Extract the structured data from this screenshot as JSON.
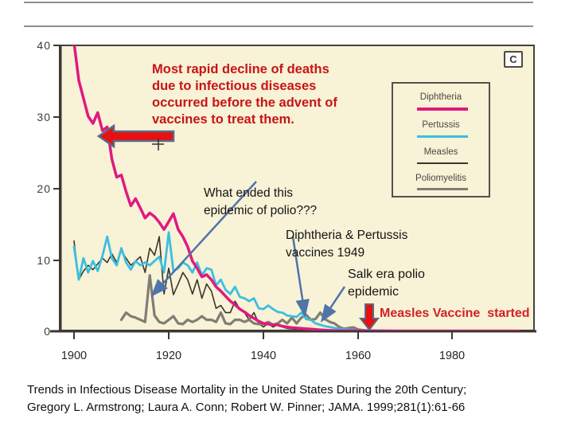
{
  "slide": {
    "panel_label": "C",
    "claim_text": "Most rapid decline of deaths\ndue to infectious diseases\noccurred before the advent of\nvaccines to treat them.",
    "question_text": "What ended this\nepidemic of polio???",
    "dp_vaccines_text": "Diphtheria & Pertussis\nvaccines 1949",
    "salk_text": "Salk era polio\nepidemic",
    "measles_vaccine_text": "Measles Vaccine  started",
    "citation_text": "Trends in Infectious Disease Mortality in the United States During the 20th Century;\nGregory L. Armstrong; Laura A. Conn; Robert W. Pinner; JAMA. 1999;281(1):61-66",
    "colors": {
      "claim_red": "#c81414",
      "measles_note_red": "#d32222",
      "arrow_fill_red": "#e81010",
      "arrow_outline_slate": "#5a6a88",
      "pointer_blue": "#4f74a8",
      "plot_background": "#f8f2d7",
      "plot_border": "#45423c"
    }
  },
  "axis": {
    "y_ticks": [
      "40",
      "30",
      "20",
      "10",
      "0"
    ],
    "x_ticks": [
      "1900",
      "1920",
      "1940",
      "1960",
      "1980"
    ]
  },
  "chart_data": {
    "type": "line",
    "xlabel": "",
    "ylabel": "",
    "xlim": [
      1897,
      1997
    ],
    "ylim": [
      0,
      40
    ],
    "x_tick_values": [
      1900,
      1920,
      1940,
      1960,
      1980
    ],
    "y_tick_values": [
      0,
      10,
      20,
      30,
      40
    ],
    "grid": false,
    "legend_position": "upper right",
    "legend_labels": [
      "Diphtheria",
      "Pertussis",
      "Measles",
      "Poliomyelitis"
    ],
    "series": [
      {
        "name": "Diphtheria",
        "color": "#e01980",
        "stroke_width": 3.5,
        "years": [
          1900,
          1901,
          1902,
          1903,
          1904,
          1905,
          1906,
          1907,
          1908,
          1909,
          1910,
          1911,
          1912,
          1913,
          1914,
          1915,
          1916,
          1917,
          1918,
          1919,
          1920,
          1921,
          1922,
          1923,
          1924,
          1925,
          1926,
          1927,
          1928,
          1929,
          1930,
          1931,
          1932,
          1933,
          1934,
          1935,
          1936,
          1937,
          1938,
          1939,
          1940,
          1941,
          1942,
          1943,
          1944,
          1945,
          1946,
          1947,
          1948,
          1949,
          1950,
          1951,
          1952,
          1953,
          1954,
          1955,
          1960,
          1970,
          1980,
          1990,
          1994
        ],
        "values": [
          40.3,
          35,
          32.5,
          30,
          29,
          30.5,
          28,
          28.5,
          24,
          21.5,
          21.8,
          19.5,
          17.5,
          18.5,
          17.2,
          15.8,
          16.5,
          16,
          15.2,
          14.2,
          15.3,
          16.4,
          14.2,
          13.2,
          11.8,
          9.8,
          8.8,
          7.6,
          7.9,
          7.2,
          6.2,
          5.6,
          4.9,
          4.2,
          3.7,
          3.1,
          2.7,
          2.2,
          1.8,
          1.4,
          1.1,
          1,
          0.9,
          0.9,
          0.7,
          0.6,
          0.5,
          0.45,
          0.4,
          0.35,
          0.3,
          0.25,
          0.2,
          0.15,
          0.12,
          0.1,
          0.07,
          0.05,
          0.05,
          0.05,
          0.05
        ]
      },
      {
        "name": "Pertussis",
        "color": "#3bbfe0",
        "stroke_width": 2.8,
        "years": [
          1900,
          1901,
          1902,
          1903,
          1904,
          1905,
          1906,
          1907,
          1908,
          1909,
          1910,
          1911,
          1912,
          1913,
          1914,
          1915,
          1916,
          1917,
          1918,
          1919,
          1920,
          1921,
          1922,
          1923,
          1924,
          1925,
          1926,
          1927,
          1928,
          1929,
          1930,
          1931,
          1932,
          1933,
          1934,
          1935,
          1936,
          1937,
          1938,
          1939,
          1940,
          1941,
          1942,
          1943,
          1944,
          1945,
          1946,
          1947,
          1948,
          1949,
          1950,
          1951,
          1952,
          1953,
          1954,
          1955,
          1956,
          1957,
          1958,
          1959,
          1960,
          1965,
          1970
        ],
        "values": [
          11.8,
          7.2,
          10.2,
          8.2,
          9.8,
          8.4,
          10.5,
          13.2,
          10.2,
          9.2,
          11.6,
          9.6,
          8.6,
          9.8,
          9.2,
          9.6,
          9.2,
          9.8,
          10.4,
          8.2,
          13.8,
          8.4,
          8.8,
          9.6,
          9.2,
          8.2,
          9.6,
          7.8,
          8.8,
          8.6,
          6.4,
          7.2,
          5.8,
          5.2,
          6.2,
          4.8,
          4.6,
          4.2,
          4.6,
          3.2,
          3.1,
          3.6,
          3.1,
          2.7,
          2.6,
          2.2,
          2.1,
          2,
          2.6,
          1.7,
          1.6,
          1.1,
          0.9,
          0.7,
          0.6,
          0.45,
          0.35,
          0.3,
          0.25,
          0.2,
          0.15,
          0.08,
          0.05
        ]
      },
      {
        "name": "Measles",
        "color": "#3a342c",
        "stroke_width": 1.6,
        "years": [
          1900,
          1901,
          1902,
          1903,
          1904,
          1905,
          1906,
          1907,
          1908,
          1909,
          1910,
          1911,
          1912,
          1913,
          1914,
          1915,
          1916,
          1917,
          1918,
          1919,
          1920,
          1921,
          1922,
          1923,
          1924,
          1925,
          1926,
          1927,
          1928,
          1929,
          1930,
          1931,
          1932,
          1933,
          1934,
          1935,
          1936,
          1937,
          1938,
          1939,
          1940,
          1941,
          1942,
          1943,
          1944,
          1945,
          1946,
          1947,
          1948,
          1949,
          1950,
          1951,
          1952,
          1953,
          1954,
          1955,
          1956,
          1957,
          1958,
          1959,
          1960,
          1965,
          1970
        ],
        "values": [
          12.6,
          7.2,
          8.4,
          9.2,
          8.6,
          9.4,
          10.2,
          9.6,
          10.8,
          9.6,
          11.2,
          10.2,
          9.2,
          9.8,
          10.4,
          8.2,
          11.6,
          10.6,
          13.2,
          5.2,
          8.8,
          5.1,
          6.6,
          8.2,
          7.2,
          5.2,
          7.2,
          4.6,
          6.6,
          5.6,
          3.2,
          3.6,
          2.6,
          2.6,
          4.2,
          3.1,
          2.6,
          1.6,
          2.6,
          1.1,
          0.6,
          1.1,
          0.6,
          0.9,
          0.6,
          0.4,
          0.35,
          0.3,
          0.45,
          0.35,
          0.3,
          0.3,
          0.25,
          0.2,
          0.2,
          0.15,
          0.12,
          0.1,
          0.1,
          0.08,
          0.06,
          0.04,
          0.03
        ]
      },
      {
        "name": "Poliomyelitis",
        "color": "#807d74",
        "stroke_width": 3.2,
        "years": [
          1910,
          1911,
          1912,
          1913,
          1914,
          1915,
          1916,
          1917,
          1918,
          1919,
          1920,
          1921,
          1922,
          1923,
          1924,
          1925,
          1926,
          1927,
          1928,
          1929,
          1930,
          1931,
          1932,
          1933,
          1934,
          1935,
          1936,
          1937,
          1938,
          1939,
          1940,
          1941,
          1942,
          1943,
          1944,
          1945,
          1946,
          1947,
          1948,
          1949,
          1950,
          1951,
          1952,
          1953,
          1954,
          1955,
          1956,
          1957,
          1958,
          1959,
          1960,
          1961,
          1962,
          1963,
          1964,
          1965
        ],
        "values": [
          1.6,
          2.6,
          2.1,
          1.9,
          1.6,
          1.3,
          7.8,
          2.2,
          1.3,
          1.1,
          1.6,
          2.1,
          1.1,
          1,
          1.6,
          1.3,
          1.6,
          2.1,
          1.6,
          1.6,
          1.3,
          2.6,
          1.1,
          1,
          1.6,
          1.6,
          1.3,
          1.6,
          1.1,
          1,
          1,
          1.3,
          0.9,
          1.1,
          1.6,
          1.1,
          1.9,
          1.1,
          1.9,
          2.3,
          1.6,
          1.7,
          2.6,
          1.7,
          1.3,
          1.1,
          0.6,
          0.35,
          0.45,
          0.55,
          0.25,
          0.15,
          0.1,
          0.06,
          0.04,
          0.03
        ]
      }
    ]
  }
}
